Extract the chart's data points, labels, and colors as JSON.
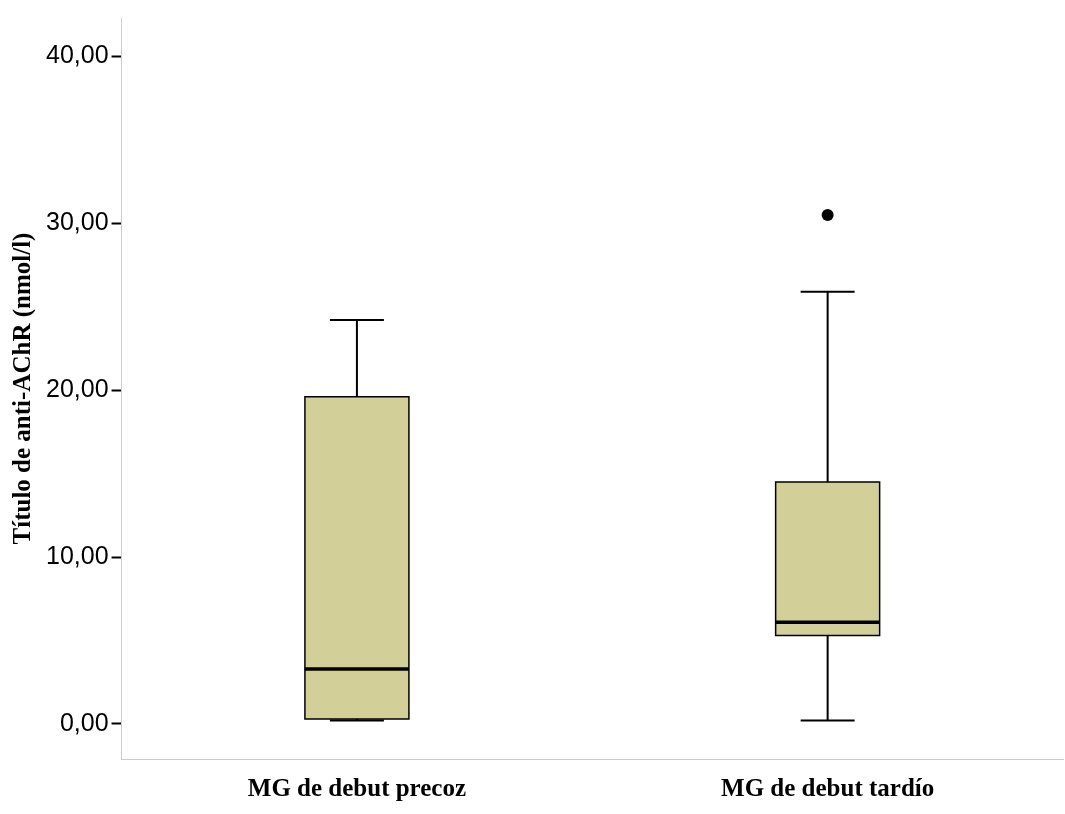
{
  "chart_data": {
    "type": "box",
    "ylabel": "Título de anti-AChR (nmol/l)",
    "categories": [
      "MG de debut precoz",
      "MG de debut tardío"
    ],
    "color": "#d3cf98",
    "boxes": [
      {
        "low": 0.2,
        "q1": 0.3,
        "median": 3.3,
        "q3": 19.6,
        "high": 24.2
      },
      {
        "low": 0.2,
        "q1": 5.3,
        "median": 6.1,
        "q3": 14.5,
        "high": 25.9,
        "outliers": [
          30.5
        ]
      }
    ],
    "ylim": [
      -2.1,
      42.3
    ],
    "yticks": [
      {
        "value": 0,
        "label": "0,00"
      },
      {
        "value": 10,
        "label": "10,00"
      },
      {
        "value": 20,
        "label": "20,00"
      },
      {
        "value": 30,
        "label": "30,00"
      },
      {
        "value": 40,
        "label": "40,00"
      }
    ],
    "grid": false,
    "legend": false
  }
}
